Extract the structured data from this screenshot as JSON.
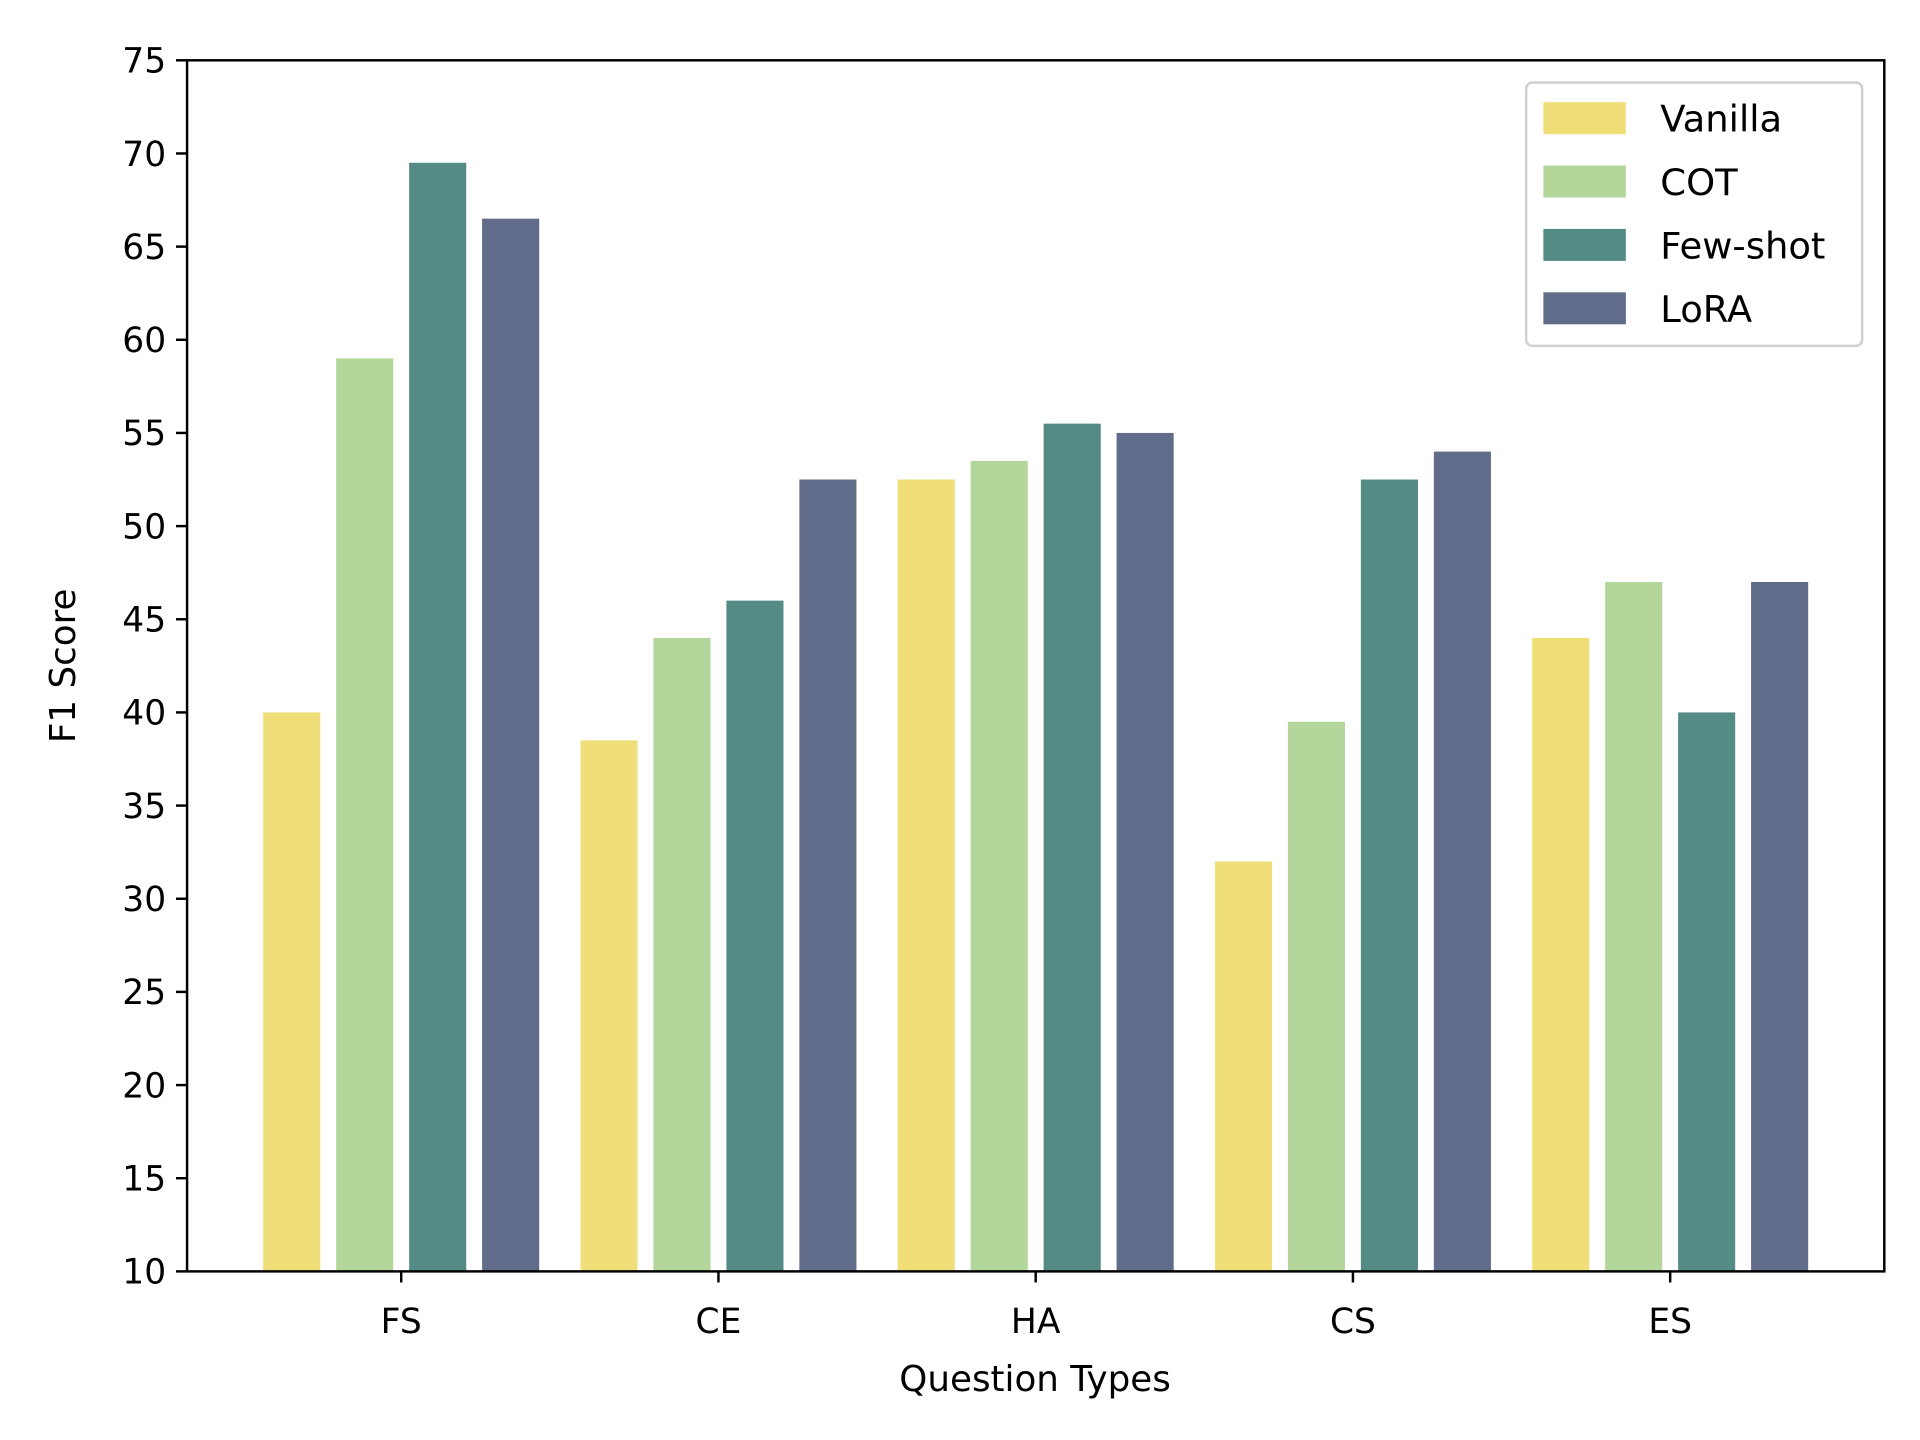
{
  "chart_data": {
    "type": "bar",
    "title": "",
    "xlabel": "Question Types",
    "ylabel": "F1 Score",
    "ylim": [
      10,
      75
    ],
    "yticks": [
      10,
      15,
      20,
      25,
      30,
      35,
      40,
      45,
      50,
      55,
      60,
      65,
      70,
      75
    ],
    "categories": [
      "FS",
      "CE",
      "HA",
      "CS",
      "ES"
    ],
    "grid": false,
    "legend_position": "top-right",
    "series": [
      {
        "name": "Vanilla",
        "color": "#f0de78",
        "values": [
          40,
          38.5,
          52.5,
          32,
          44
        ]
      },
      {
        "name": "COT",
        "color": "#b3d69b",
        "values": [
          59,
          44,
          53.5,
          39.5,
          47
        ]
      },
      {
        "name": "Few-shot",
        "color": "#558b85",
        "values": [
          69.5,
          46,
          55.5,
          52.5,
          40
        ]
      },
      {
        "name": "LoRA",
        "color": "#616b8a",
        "values": [
          66.5,
          52.5,
          55,
          54,
          47
        ]
      }
    ]
  }
}
